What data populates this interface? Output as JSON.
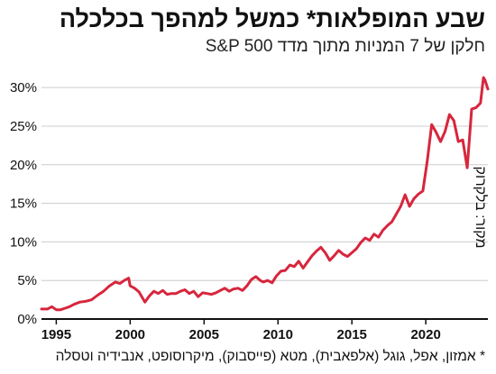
{
  "title": "שבע המופלאות* כמשל למהפך בכלכלה",
  "subtitle": "חלקן של 7 המניות מתוך מדד S&P 500",
  "source": "מקור: בלקרוק",
  "footnote": "* אמזון, אפל, גוגל (אלפאבית), מטא (פייסבוק), מיקרוסופט, אנבידיה וטסלה",
  "colors": {
    "line": "#d7263d",
    "grid": "#cccccc",
    "axis": "#111111"
  },
  "chart_data": {
    "type": "line",
    "title": "שבע המופלאות* כמשל למהפך בכלכלה",
    "subtitle": "חלקן של 7 המניות מתוך מדד S&P 500",
    "xlim": [
      1994,
      2024.2
    ],
    "ylim": [
      0,
      32
    ],
    "x_ticks": [
      1995,
      2000,
      2005,
      2010,
      2015,
      2020
    ],
    "x_tick_labels": [
      "1995",
      "2000",
      "2005",
      "2010",
      "2015",
      "2020"
    ],
    "y_ticks": [
      0,
      5,
      10,
      15,
      20,
      25,
      30
    ],
    "y_tick_labels": [
      "0%",
      "5%",
      "10%",
      "15%",
      "20%",
      "25%",
      "30%"
    ],
    "grid": "horizontal",
    "series": [
      {
        "x": [
          1994.0,
          1994.4,
          1994.7,
          1995.0,
          1995.3,
          1995.6,
          1995.9,
          1996.2,
          1996.6,
          1997.0,
          1997.4,
          1997.8,
          1998.2,
          1998.6,
          1999.0,
          1999.3,
          1999.6,
          1999.9,
          2000.0,
          2000.3,
          2000.6,
          2001.0,
          2001.3,
          2001.6,
          2001.9,
          2002.2,
          2002.5,
          2002.8,
          2003.1,
          2003.4,
          2003.7,
          2004.0,
          2004.3,
          2004.6,
          2004.9,
          2005.2,
          2005.5,
          2005.8,
          2006.1,
          2006.4,
          2006.7,
          2007.0,
          2007.3,
          2007.6,
          2007.9,
          2008.2,
          2008.5,
          2008.8,
          2009.0,
          2009.3,
          2009.6,
          2009.9,
          2010.2,
          2010.5,
          2010.8,
          2011.1,
          2011.4,
          2011.7,
          2012.0,
          2012.3,
          2012.6,
          2012.9,
          2013.2,
          2013.5,
          2013.8,
          2014.1,
          2014.4,
          2014.7,
          2015.0,
          2015.3,
          2015.6,
          2015.9,
          2016.2,
          2016.5,
          2016.8,
          2017.1,
          2017.4,
          2017.7,
          2018.0,
          2018.3,
          2018.6,
          2018.9,
          2019.2,
          2019.5,
          2019.8,
          2020.1,
          2020.4,
          2020.7,
          2021.0,
          2021.3,
          2021.6,
          2021.9,
          2022.2,
          2022.5,
          2022.8,
          2023.1,
          2023.4,
          2023.7,
          2023.9,
          2024.0,
          2024.2
        ],
        "values": [
          1.3,
          1.3,
          1.6,
          1.2,
          1.2,
          1.4,
          1.6,
          1.9,
          2.2,
          2.3,
          2.5,
          3.1,
          3.6,
          4.3,
          4.8,
          4.6,
          5.0,
          5.3,
          4.3,
          4.0,
          3.5,
          2.2,
          3.0,
          3.6,
          3.3,
          3.7,
          3.2,
          3.3,
          3.3,
          3.6,
          3.8,
          3.3,
          3.6,
          2.9,
          3.4,
          3.3,
          3.2,
          3.4,
          3.7,
          4.0,
          3.6,
          3.9,
          4.0,
          3.7,
          4.3,
          5.1,
          5.5,
          5.0,
          4.8,
          5.0,
          4.7,
          5.6,
          6.2,
          6.3,
          7.0,
          6.8,
          7.5,
          6.6,
          7.4,
          8.2,
          8.8,
          9.3,
          8.6,
          7.6,
          8.2,
          8.9,
          8.4,
          8.1,
          8.6,
          9.1,
          9.9,
          10.5,
          10.2,
          11.0,
          10.6,
          11.5,
          12.1,
          12.6,
          13.6,
          14.6,
          16.1,
          14.6,
          15.6,
          16.2,
          16.6,
          20.5,
          25.2,
          24.2,
          23.0,
          24.3,
          26.5,
          25.7,
          23.0,
          23.2,
          19.6,
          27.2,
          27.4,
          28.0,
          31.3,
          31.0,
          29.8
        ]
      }
    ]
  }
}
